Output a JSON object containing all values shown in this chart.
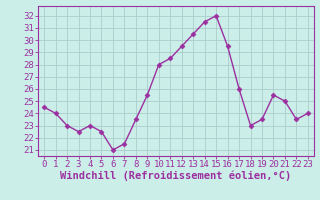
{
  "x": [
    0,
    1,
    2,
    3,
    4,
    5,
    6,
    7,
    8,
    9,
    10,
    11,
    12,
    13,
    14,
    15,
    16,
    17,
    18,
    19,
    20,
    21,
    22,
    23
  ],
  "y": [
    24.5,
    24.0,
    23.0,
    22.5,
    23.0,
    22.5,
    21.0,
    21.5,
    23.5,
    25.5,
    28.0,
    28.5,
    29.5,
    30.5,
    31.5,
    32.0,
    29.5,
    26.0,
    23.0,
    23.5,
    25.5,
    25.0,
    23.5,
    24.0
  ],
  "line_color": "#9b30a0",
  "marker": "D",
  "marker_size": 2.5,
  "linewidth": 1.0,
  "bg_color": "#cceee8",
  "grid_color": "#aacccc",
  "xlabel": "Windchill (Refroidissement éolien,°C)",
  "xlabel_color": "#9b30a0",
  "ylabel_ticks": [
    21,
    22,
    23,
    24,
    25,
    26,
    27,
    28,
    29,
    30,
    31,
    32
  ],
  "xtick_labels": [
    "0",
    "1",
    "2",
    "3",
    "4",
    "5",
    "6",
    "7",
    "8",
    "9",
    "10",
    "11",
    "12",
    "13",
    "14",
    "15",
    "16",
    "17",
    "18",
    "19",
    "20",
    "21",
    "22",
    "23"
  ],
  "ylim": [
    20.5,
    32.8
  ],
  "xlim": [
    -0.5,
    23.5
  ],
  "tick_color": "#9b30a0",
  "tick_fontsize": 6.5,
  "xlabel_fontsize": 7.5,
  "spine_color": "#9b30a0"
}
